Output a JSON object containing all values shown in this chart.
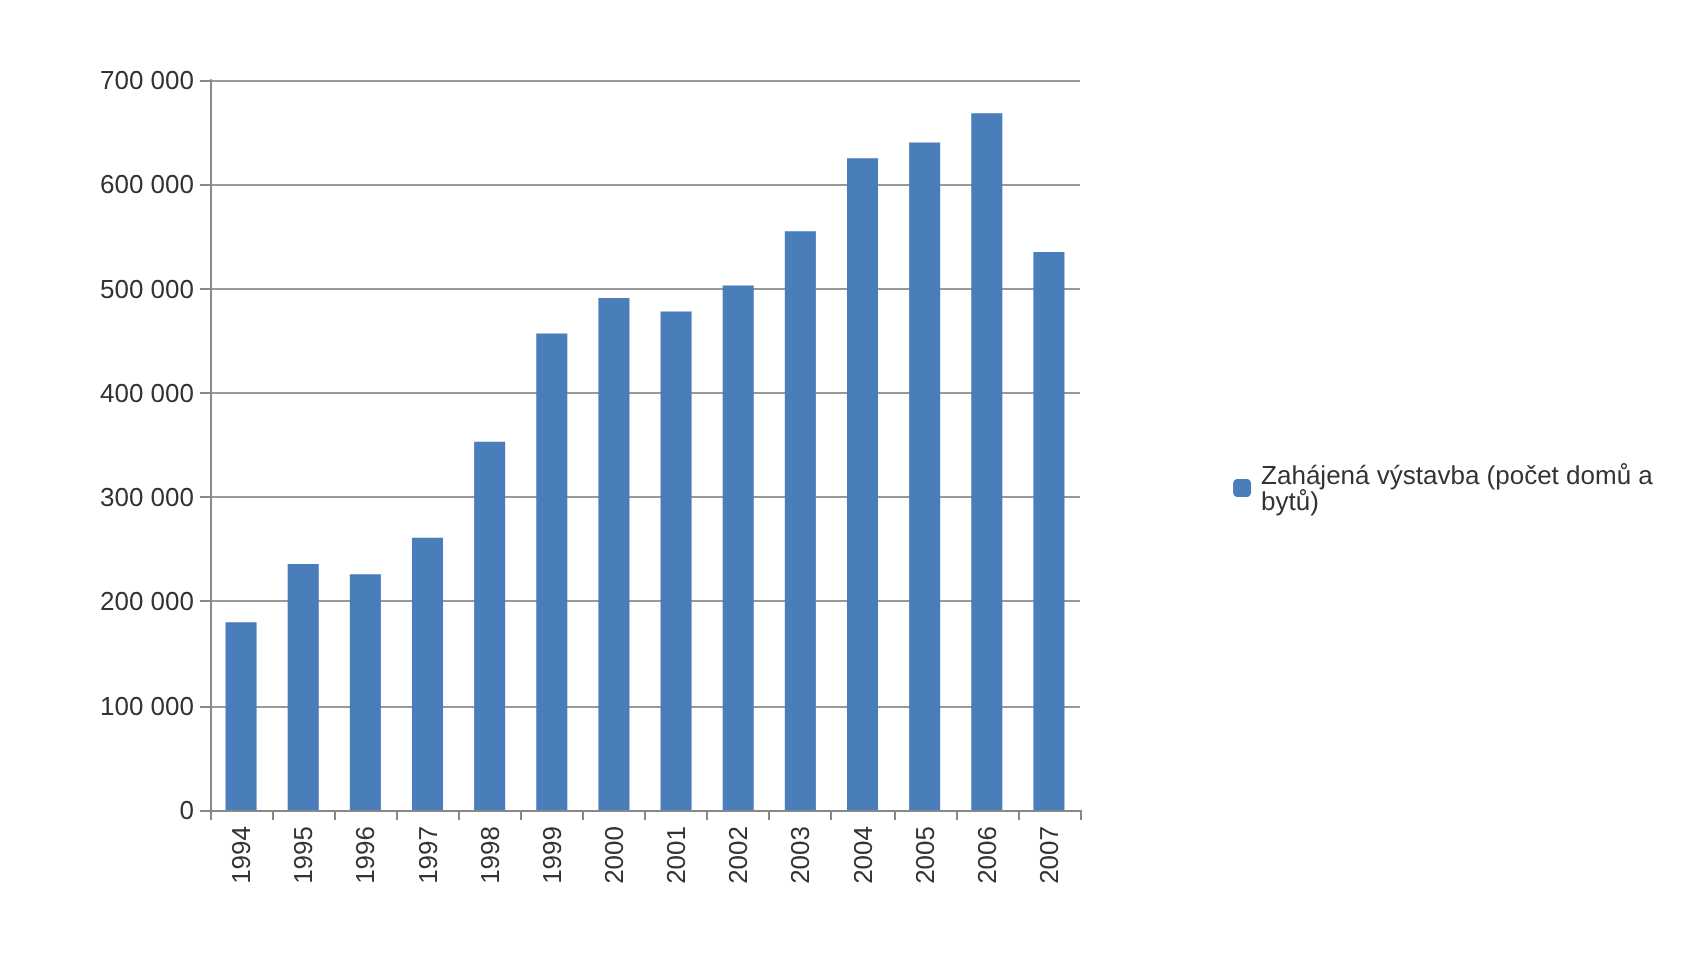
{
  "chart_data": {
    "type": "bar",
    "categories": [
      "1994",
      "1995",
      "1996",
      "1997",
      "1998",
      "1999",
      "2000",
      "2001",
      "2002",
      "2003",
      "2004",
      "2005",
      "2006",
      "2007"
    ],
    "series": [
      {
        "name": "Zahájená výstavba (počet domů a bytů)",
        "color": "#4a7ebb",
        "values": [
          180000,
          236000,
          226000,
          261000,
          353000,
          457000,
          491000,
          478000,
          503000,
          555000,
          625000,
          640000,
          668000,
          535000
        ]
      }
    ],
    "ylim": [
      0,
      700000
    ],
    "yticks": [
      0,
      {
        "value": 100000,
        "label": "100 000"
      },
      {
        "value": 200000,
        "label": "200 000"
      },
      {
        "value": 300000,
        "label": "300 000"
      },
      {
        "value": 400000,
        "label": "400 000"
      },
      {
        "value": 500000,
        "label": "500 000"
      },
      {
        "value": 600000,
        "label": "600 000"
      },
      {
        "value": 700000,
        "label": "700 000"
      }
    ],
    "grid": "y",
    "legend": "right"
  }
}
